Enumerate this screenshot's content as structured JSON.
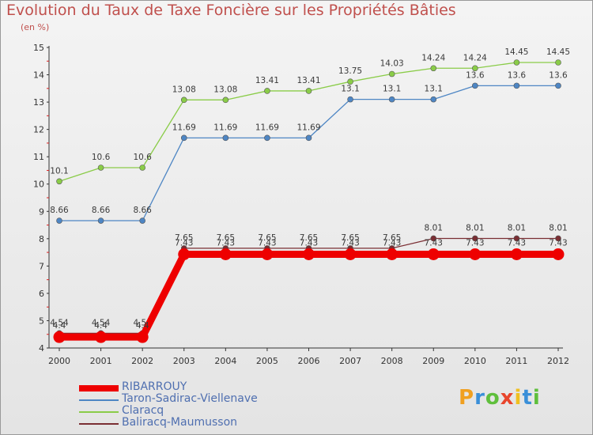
{
  "chart_data": {
    "type": "line",
    "title": "Evolution du Taux de Taxe Foncière sur les Propriétés Bâties",
    "ylabel": "(en %)",
    "xlabel": "",
    "x": [
      "2000",
      "2001",
      "2002",
      "2003",
      "2004",
      "2005",
      "2006",
      "2007",
      "2008",
      "2009",
      "2010",
      "2011",
      "2012"
    ],
    "yticks": [
      "4",
      "5",
      "6",
      "7",
      "8",
      "9",
      "10",
      "11",
      "12",
      "13",
      "14",
      "15"
    ],
    "ylim": [
      4,
      15
    ],
    "grid": false,
    "series": [
      {
        "name": "RIBARROUY",
        "color": "#ee0000",
        "values": [
          4.4,
          4.4,
          4.4,
          7.43,
          7.43,
          7.43,
          7.43,
          7.43,
          7.43,
          7.43,
          7.43,
          7.43,
          7.43
        ],
        "labels": [
          "4.4",
          "4.4",
          "4.4",
          "7.43",
          "7.43",
          "7.43",
          "7.43",
          "7.43",
          "7.43",
          "7.43",
          "7.43",
          "7.43",
          "7.43"
        ]
      },
      {
        "name": "Taron-Sadirac-Viellenave",
        "color": "#4e86c4",
        "values": [
          8.66,
          8.66,
          8.66,
          11.69,
          11.69,
          11.69,
          11.69,
          13.1,
          13.1,
          13.1,
          13.6,
          13.6,
          13.6
        ],
        "labels": [
          "8.66",
          "8.66",
          "8.66",
          "11.69",
          "11.69",
          "11.69",
          "11.69",
          "13.1",
          "13.1",
          "13.1",
          "13.6",
          "13.6",
          "13.6"
        ]
      },
      {
        "name": "Claracq",
        "color": "#8acc48",
        "values": [
          10.1,
          10.6,
          10.6,
          13.08,
          13.08,
          13.41,
          13.41,
          13.75,
          14.03,
          14.24,
          14.24,
          14.45,
          14.45
        ],
        "labels": [
          "10.1",
          "10.6",
          "10.6",
          "13.08",
          "13.08",
          "13.41",
          "13.41",
          "13.75",
          "14.03",
          "14.24",
          "14.24",
          "14.45",
          "14.45"
        ]
      },
      {
        "name": "Baliracq-Maumusson",
        "color": "#7a2e33",
        "values": [
          4.54,
          4.54,
          4.54,
          7.65,
          7.65,
          7.65,
          7.65,
          7.65,
          7.65,
          8.01,
          8.01,
          8.01,
          8.01
        ],
        "labels": [
          "4.54",
          "4.54",
          "4.54",
          "7.65",
          "7.65",
          "7.65",
          "7.65",
          "7.65",
          "7.65",
          "8.01",
          "8.01",
          "8.01",
          "8.01"
        ]
      }
    ]
  },
  "brand": {
    "letters": [
      "P",
      "r",
      "o",
      "x",
      "i",
      "t",
      "i"
    ],
    "colors": [
      "#f0a020",
      "#3a8fd8",
      "#5fbf3c",
      "#e8452c",
      "#f0c020",
      "#3a8fd8",
      "#5fbf3c"
    ]
  }
}
